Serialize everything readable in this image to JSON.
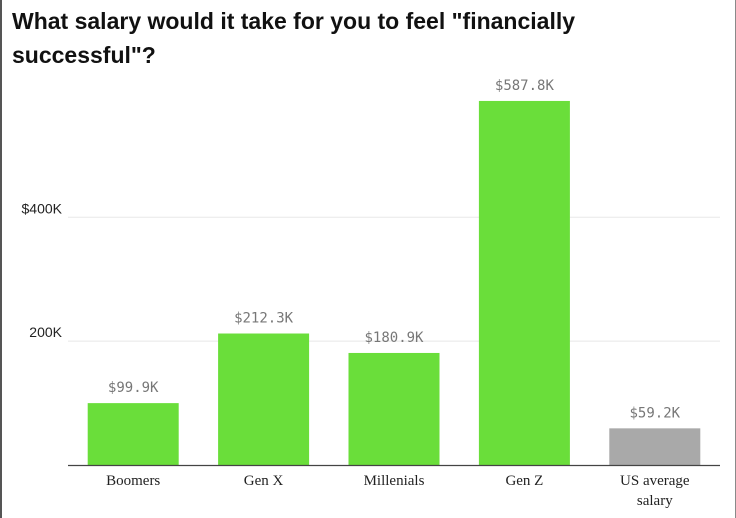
{
  "chart_data": {
    "type": "bar",
    "title": "What salary would it take for you to feel \"financially successful\"?",
    "categories": [
      "Boomers",
      "Gen X",
      "Millenials",
      "Gen Z",
      "US average salary"
    ],
    "values": [
      99.9,
      212.3,
      180.9,
      587.8,
      59.2
    ],
    "value_labels": [
      "$99.9K",
      "$212.3K",
      "$180.9K",
      "$587.8K",
      "$59.2K"
    ],
    "units": "thousands of dollars",
    "y_ticks": [
      {
        "value": 200,
        "label": "200K"
      },
      {
        "value": 400,
        "label": "$400K"
      }
    ],
    "ylim": [
      0,
      620
    ],
    "grid": true,
    "legend": "none",
    "colors": {
      "bar": "#6ade3a",
      "bar_highlight": "#a9a9a9",
      "grid": "#e8e8e8",
      "axis": "#444444"
    },
    "highlight_index": 4
  }
}
